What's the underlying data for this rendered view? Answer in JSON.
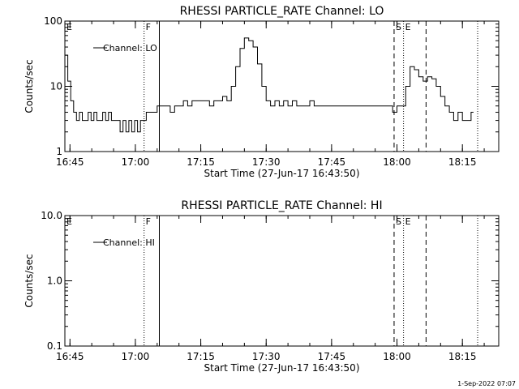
{
  "footer_date": "1-Sep-2022 07:07",
  "chart_data": [
    {
      "type": "line",
      "title": "RHESSI PARTICLE_RATE Channel: LO",
      "xlabel": "Start Time (27-Jun-17 16:43:50)",
      "ylabel": "Counts/sec",
      "y_scale": "log",
      "ylim": [
        1,
        100
      ],
      "yticks": [
        1,
        10,
        100
      ],
      "ytick_labels": [
        "1",
        "10",
        "100"
      ],
      "xlim": [
        "16:43:50",
        "18:23:20"
      ],
      "xticks": [
        "16:45",
        "17:00",
        "17:15",
        "17:30",
        "17:45",
        "18:00",
        "18:15"
      ],
      "legend": {
        "entries": [
          "Channel: LO"
        ],
        "placement": "top-left"
      },
      "markers": [
        {
          "label": "E",
          "time": "16:43:50",
          "style": "dotted"
        },
        {
          "label": "F",
          "time": "17:02:00",
          "style": "dotted"
        },
        {
          "label": "",
          "time": "17:05:30",
          "style": "solid"
        },
        {
          "label": "S",
          "time": "17:59:20",
          "style": "dashed"
        },
        {
          "label": "E",
          "time": "18:01:30",
          "style": "dotted"
        },
        {
          "label": "",
          "time": "18:06:40",
          "style": "dashed"
        },
        {
          "label": "",
          "time": "18:18:30",
          "style": "dotted"
        }
      ],
      "series": [
        {
          "name": "Channel: LO",
          "x": [
            "16:43:50",
            "16:44:30",
            "16:45:10",
            "16:45:50",
            "16:46:30",
            "16:47:10",
            "16:47:50",
            "16:48:30",
            "16:49:10",
            "16:49:50",
            "16:50:30",
            "16:51:10",
            "16:51:50",
            "16:52:30",
            "16:53:10",
            "16:53:50",
            "16:54:30",
            "16:55:10",
            "16:55:50",
            "16:56:30",
            "16:57:10",
            "16:57:50",
            "16:58:30",
            "16:59:10",
            "16:59:50",
            "17:00:30",
            "17:01:10",
            "17:01:50",
            "17:02:30",
            "17:03:10",
            "17:04:00",
            "17:05:00",
            "17:06:00",
            "17:07:00",
            "17:08:00",
            "17:09:00",
            "17:10:00",
            "17:11:00",
            "17:12:00",
            "17:13:00",
            "17:14:00",
            "17:15:00",
            "17:16:00",
            "17:17:00",
            "17:18:00",
            "17:19:00",
            "17:20:00",
            "17:21:00",
            "17:22:00",
            "17:23:00",
            "17:24:00",
            "17:25:00",
            "17:26:00",
            "17:27:00",
            "17:28:00",
            "17:29:00",
            "17:30:00",
            "17:31:00",
            "17:32:00",
            "17:33:00",
            "17:34:00",
            "17:35:00",
            "17:36:00",
            "17:37:00",
            "17:38:00",
            "17:39:00",
            "17:40:00",
            "17:41:00",
            "17:42:00",
            "17:43:00",
            "17:44:00",
            "17:45:00",
            "17:46:00",
            "17:47:00",
            "17:48:00",
            "17:49:00",
            "17:50:00",
            "17:51:00",
            "17:52:00",
            "17:53:00",
            "17:54:00",
            "17:55:00",
            "17:56:00",
            "17:57:00",
            "17:58:00",
            "17:59:00",
            "18:00:00",
            "18:01:00",
            "18:02:00",
            "18:03:00",
            "18:04:00",
            "18:05:00",
            "18:06:00",
            "18:07:00",
            "18:08:00",
            "18:09:00",
            "18:10:00",
            "18:11:00",
            "18:12:00",
            "18:13:00",
            "18:14:00",
            "18:15:00",
            "18:16:00",
            "18:17:00"
          ],
          "values": [
            30,
            12,
            6,
            4,
            3,
            4,
            3,
            3,
            4,
            3,
            4,
            3,
            3,
            4,
            3,
            4,
            3,
            3,
            3,
            2,
            3,
            2,
            3,
            2,
            3,
            2,
            3,
            3,
            4,
            4,
            4,
            5,
            5,
            5,
            4,
            5,
            5,
            6,
            5,
            6,
            6,
            6,
            6,
            5,
            6,
            6,
            7,
            6,
            10,
            20,
            38,
            55,
            50,
            40,
            22,
            10,
            6,
            5,
            6,
            5,
            6,
            5,
            6,
            5,
            5,
            5,
            6,
            5,
            5,
            5,
            5,
            5,
            5,
            5,
            5,
            5,
            5,
            5,
            5,
            5,
            5,
            5,
            5,
            5,
            5,
            4,
            5,
            5,
            10,
            20,
            18,
            14,
            12,
            14,
            13,
            10,
            7,
            5,
            4,
            3,
            4,
            3,
            3,
            4
          ]
        }
      ]
    },
    {
      "type": "line",
      "title": "RHESSI PARTICLE_RATE Channel: HI",
      "xlabel": "Start Time (27-Jun-17 16:43:50)",
      "ylabel": "Counts/sec",
      "y_scale": "log",
      "ylim": [
        0.1,
        10
      ],
      "yticks": [
        0.1,
        1,
        10
      ],
      "ytick_labels": [
        "0.1",
        "1.0",
        "10.0"
      ],
      "xlim": [
        "16:43:50",
        "18:23:20"
      ],
      "xticks": [
        "16:45",
        "17:00",
        "17:15",
        "17:30",
        "17:45",
        "18:00",
        "18:15"
      ],
      "legend": {
        "entries": [
          "Channel: HI"
        ],
        "placement": "top-left"
      },
      "markers": [
        {
          "label": "E",
          "time": "16:43:50",
          "style": "dotted"
        },
        {
          "label": "F",
          "time": "17:02:00",
          "style": "dotted"
        },
        {
          "label": "",
          "time": "17:05:30",
          "style": "solid"
        },
        {
          "label": "S",
          "time": "17:59:20",
          "style": "dashed"
        },
        {
          "label": "E",
          "time": "18:01:30",
          "style": "dotted"
        },
        {
          "label": "",
          "time": "18:06:40",
          "style": "dashed"
        },
        {
          "label": "",
          "time": "18:18:30",
          "style": "dotted"
        }
      ],
      "series": [
        {
          "name": "Channel: HI",
          "x": [],
          "values": []
        }
      ]
    }
  ]
}
